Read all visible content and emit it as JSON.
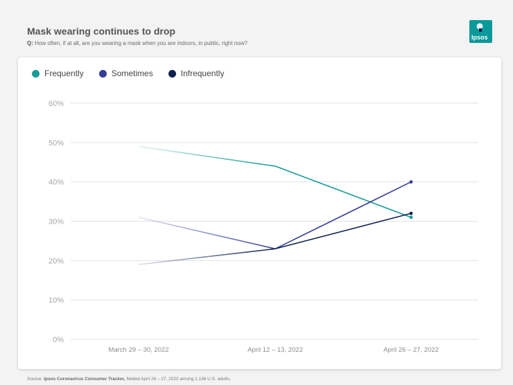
{
  "header": {
    "title": "Mask wearing continues to drop",
    "question_prefix": "Q:",
    "question_text": "How often, if at all, are you wearing a mask when you are indoors, in public, right now?"
  },
  "logo": {
    "text": "Ipsos",
    "color": "#0b9a9a"
  },
  "source": {
    "prefix": "Source:",
    "bold": "Ipsos Coronavirus Consumer Tracker,",
    "rest": "fielded April 26 – 27, 2022 among 1,136 U.S. adults."
  },
  "chart_data": {
    "type": "line",
    "title": "Mask wearing continues to drop",
    "x": [
      "March 29 – 30, 2022",
      "April 12 – 13, 2022",
      "April 26 – 27, 2022"
    ],
    "ylim": [
      0,
      60
    ],
    "yticks": [
      "0%",
      "10%",
      "20%",
      "30%",
      "40%",
      "50%",
      "60%"
    ],
    "grid": true,
    "legend_position": "top-left",
    "series": [
      {
        "name": "Frequently",
        "color": "#159c96",
        "values": [
          49,
          44,
          31
        ]
      },
      {
        "name": "Sometimes",
        "color": "#343e96",
        "values": [
          31,
          23,
          40
        ]
      },
      {
        "name": "Infrequently",
        "color": "#0e2150",
        "values": [
          19,
          23,
          32
        ]
      }
    ]
  }
}
